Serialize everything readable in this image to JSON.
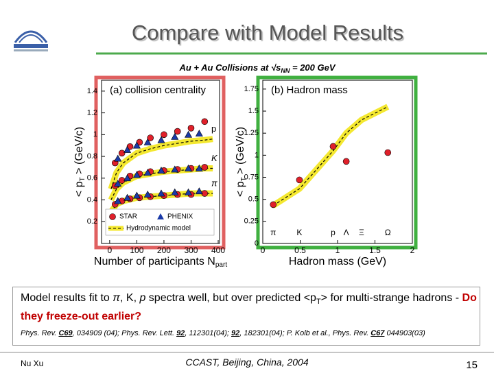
{
  "header": {
    "title": "Compare with Model Results"
  },
  "figure": {
    "title": [
      "Au + Au Collisions at ",
      "√s",
      "NN",
      " = 200 GeV"
    ]
  },
  "chart_data": [
    {
      "type": "scatter",
      "panel_label": "(a) collision centrality",
      "x_label": [
        "Number of participants N",
        "part"
      ],
      "y_label": [
        "< p",
        "T",
        " > (GeV/c)"
      ],
      "xlim": [
        -30,
        405
      ],
      "xticks": [
        0,
        100,
        200,
        300,
        400
      ],
      "ylim": [
        0,
        1.5
      ],
      "yticks": [
        0.2,
        0.4,
        0.6,
        0.8,
        1,
        1.2,
        1.4
      ],
      "legend": "lower center",
      "series": [
        {
          "name": "STAR",
          "particle": "π",
          "mark": "circle",
          "color": "#e0202a",
          "x": [
            20,
            45,
            75,
            110,
            150,
            200,
            250,
            300,
            350
          ],
          "values": [
            0.36,
            0.39,
            0.41,
            0.42,
            0.43,
            0.44,
            0.45,
            0.45,
            0.46
          ]
        },
        {
          "name": "STAR",
          "particle": "K",
          "mark": "circle",
          "color": "#e0202a",
          "x": [
            20,
            45,
            75,
            110,
            150,
            200,
            250,
            300,
            350
          ],
          "values": [
            0.53,
            0.58,
            0.62,
            0.64,
            0.66,
            0.67,
            0.68,
            0.69,
            0.7
          ]
        },
        {
          "name": "STAR",
          "particle": "p",
          "mark": "circle",
          "color": "#e0202a",
          "x": [
            20,
            45,
            75,
            110,
            150,
            200,
            250,
            300,
            350
          ],
          "values": [
            0.74,
            0.83,
            0.89,
            0.93,
            0.97,
            1.0,
            1.03,
            1.06,
            1.12
          ]
        },
        {
          "name": "PHENIX",
          "particle": "π",
          "mark": "triangle",
          "color": "#1a3aa8",
          "x": [
            30,
            65,
            100,
            140,
            190,
            240,
            290,
            330
          ],
          "values": [
            0.39,
            0.42,
            0.44,
            0.45,
            0.46,
            0.47,
            0.47,
            0.48
          ]
        },
        {
          "name": "PHENIX",
          "particle": "K",
          "mark": "triangle",
          "color": "#1a3aa8",
          "x": [
            30,
            65,
            100,
            140,
            190,
            240,
            290,
            330
          ],
          "values": [
            0.55,
            0.6,
            0.63,
            0.65,
            0.67,
            0.68,
            0.69,
            0.69
          ]
        },
        {
          "name": "PHENIX",
          "particle": "p",
          "mark": "triangle",
          "color": "#1a3aa8",
          "x": [
            30,
            65,
            100,
            140,
            190,
            240,
            290,
            330
          ],
          "values": [
            0.78,
            0.86,
            0.9,
            0.93,
            0.95,
            0.98,
            1.0,
            1.01
          ]
        },
        {
          "name": "Hydrodynamic model",
          "particle": "π",
          "mark": "band",
          "color": "#f4e830",
          "x": [
            5,
            25,
            50,
            100,
            150,
            200,
            250,
            300,
            350,
            380
          ],
          "values": [
            0.29,
            0.36,
            0.39,
            0.42,
            0.43,
            0.44,
            0.45,
            0.46,
            0.46,
            0.46
          ]
        },
        {
          "name": "Hydrodynamic model",
          "particle": "K",
          "mark": "band",
          "color": "#f4e830",
          "x": [
            5,
            25,
            50,
            100,
            150,
            200,
            250,
            300,
            350,
            380
          ],
          "values": [
            0.4,
            0.5,
            0.56,
            0.62,
            0.64,
            0.66,
            0.67,
            0.68,
            0.69,
            0.69
          ]
        },
        {
          "name": "Hydrodynamic model",
          "particle": "p",
          "mark": "band",
          "color": "#f4e830",
          "x": [
            5,
            25,
            50,
            100,
            150,
            200,
            250,
            300,
            350,
            380
          ],
          "values": [
            0.5,
            0.65,
            0.74,
            0.83,
            0.87,
            0.9,
            0.92,
            0.94,
            0.95,
            0.96
          ]
        }
      ]
    },
    {
      "type": "scatter",
      "panel_label": "(b) Hadron mass",
      "x_label": [
        "Hadron mass (GeV)"
      ],
      "y_label": [
        "< p",
        "T",
        " > (GeV/c)"
      ],
      "xlim": [
        0,
        2
      ],
      "xticks": [
        0,
        0.5,
        1,
        1.5,
        2
      ],
      "ylim": [
        0,
        1.85
      ],
      "yticks": [
        0,
        0.25,
        0.5,
        0.75,
        1,
        1.25,
        1.5,
        1.75
      ],
      "particles": {
        "labels": [
          "π",
          "K",
          "p",
          "Λ",
          "Ξ",
          "Ω"
        ],
        "mass": [
          0.14,
          0.49,
          0.94,
          1.116,
          1.32,
          1.672
        ]
      },
      "series": [
        {
          "name": "Hydrodynamic model",
          "mark": "band",
          "color": "#f4e830",
          "x": [
            0.14,
            0.49,
            0.7,
            0.94,
            1.116,
            1.32,
            1.672
          ],
          "values": [
            0.43,
            0.62,
            0.82,
            1.05,
            1.25,
            1.4,
            1.55
          ]
        },
        {
          "name": "STAR",
          "mark": "circle",
          "color": "#e0202a",
          "x": [
            0.14,
            0.49,
            0.94,
            1.116,
            1.672
          ],
          "values": [
            0.44,
            0.72,
            1.1,
            0.93,
            1.03
          ]
        }
      ]
    }
  ],
  "text": [
    "Model results fit to ",
    "π",
    ", K, ",
    "p",
    " spectra well, but over predicted <p",
    "T",
    "> for multi-strange hadrons - ",
    "Do they freeze-out earlier?"
  ],
  "references": [
    "Phys. Rev. ",
    "C69",
    ", 034909 (04); Phys. Rev. Lett. ",
    "92",
    ", 112301(04); ",
    "92",
    ", 182301(04); P. Kolb et al., Phys. Rev. ",
    "C67",
    " 044903(03)"
  ],
  "footer": {
    "author": "Nu Xu",
    "venue": "CCAST, Beijing, China, 2004",
    "page": "15"
  }
}
